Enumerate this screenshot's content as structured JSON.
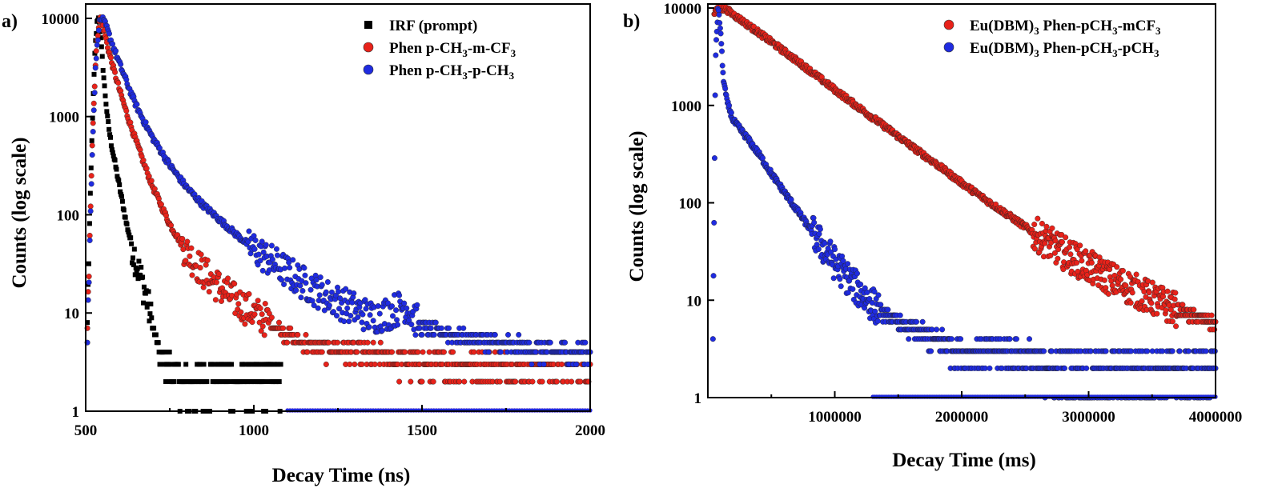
{
  "figure": {
    "background": "#ffffff"
  },
  "chart_data": [
    {
      "type": "scatter",
      "panel_label": "a)",
      "title": "",
      "xlabel": "Decay Time (ns)",
      "ylabel": "Counts (log scale)",
      "xlim": [
        500,
        2000
      ],
      "ylim": [
        1,
        14000
      ],
      "y_scale": "log",
      "x_ticks": [
        500,
        1000,
        1500,
        2000
      ],
      "x_tick_labels": [
        "500",
        "1000",
        "1500",
        "2000"
      ],
      "y_ticks": [
        1,
        10,
        100,
        1000,
        10000
      ],
      "y_tick_labels": [
        "1",
        "10",
        "100",
        "1000",
        "10000"
      ],
      "grid": false,
      "legend_position": "top-right",
      "series": [
        {
          "name": "IRF (prompt)",
          "legend_parts": [
            [
              "IRF (prompt)",
              ""
            ]
          ],
          "marker": "square",
          "color": "#000000",
          "peak_x": 540,
          "x": [
            505,
            512,
            520,
            528,
            535,
            540,
            548,
            556,
            565,
            575,
            590,
            605,
            620,
            640,
            660,
            680,
            700,
            720,
            760,
            800,
            850,
            900,
            950,
            1000,
            1050,
            1080
          ],
          "y": [
            8,
            90,
            900,
            5000,
            10000,
            10000,
            4500,
            2000,
            950,
            550,
            300,
            160,
            85,
            45,
            25,
            15,
            7,
            4,
            2.5,
            2,
            2,
            2.5,
            2,
            2,
            2.5,
            2
          ]
        },
        {
          "name": "Phen p-CH3-m-CF3",
          "legend_parts": [
            [
              "Phen p-CH",
              ""
            ],
            [
              "3",
              "sub"
            ],
            [
              "-m-CF",
              ""
            ],
            [
              "3",
              "sub"
            ]
          ],
          "marker": "circle",
          "color": "#e8221a",
          "peak_x": 545,
          "x": [
            505,
            512,
            520,
            530,
            540,
            545,
            555,
            565,
            580,
            600,
            625,
            650,
            675,
            700,
            750,
            800,
            850,
            900,
            950,
            1000,
            1050,
            1100,
            1150,
            1200,
            1300,
            1400,
            1500,
            1600,
            1700,
            1800,
            1900,
            2000
          ],
          "y": [
            6,
            60,
            600,
            4000,
            9500,
            10000,
            7500,
            5200,
            3300,
            1900,
            1000,
            560,
            320,
            190,
            80,
            42,
            26,
            18,
            13,
            10,
            8,
            6,
            5,
            4.5,
            4,
            3.5,
            3,
            3,
            3,
            3,
            3,
            3
          ]
        },
        {
          "name": "Phen p-CH3-p-CH3",
          "legend_parts": [
            [
              "Phen p-CH",
              ""
            ],
            [
              "3",
              "sub"
            ],
            [
              "-p-CH",
              ""
            ],
            [
              "3",
              "sub"
            ]
          ],
          "marker": "circle",
          "color": "#1f2be0",
          "peak_x": 548,
          "x": [
            505,
            512,
            520,
            530,
            540,
            548,
            560,
            575,
            600,
            625,
            650,
            675,
            700,
            750,
            800,
            850,
            900,
            950,
            1000,
            1050,
            1100,
            1150,
            1200,
            1250,
            1300,
            1350,
            1400,
            1450,
            1500,
            1600,
            1700,
            1800,
            1900,
            2000
          ],
          "y": [
            5,
            50,
            500,
            3500,
            9000,
            10000,
            8500,
            6000,
            3500,
            2100,
            1300,
            870,
            600,
            320,
            190,
            125,
            88,
            62,
            45,
            34,
            26,
            20,
            16,
            13,
            11,
            9,
            10,
            12,
            7,
            6,
            5,
            4.5,
            4,
            4
          ]
        }
      ]
    },
    {
      "type": "scatter",
      "panel_label": "b)",
      "title": "",
      "xlabel": "Decay Time (ms)",
      "ylabel": "Counts (log scale)",
      "xlim": [
        0,
        4000000
      ],
      "ylim": [
        1,
        11000
      ],
      "y_scale": "log",
      "x_ticks": [
        1000000,
        2000000,
        3000000,
        4000000
      ],
      "x_tick_labels": [
        "1000000",
        "2000000",
        "3000000",
        "4000000"
      ],
      "y_ticks": [
        1,
        10,
        100,
        1000,
        10000
      ],
      "y_tick_labels": [
        "1",
        "10",
        "100",
        "1000",
        "10000"
      ],
      "grid": false,
      "legend_position": "top-right",
      "series": [
        {
          "name": "Eu(DBM)3 Phen-pCH3-mCF3",
          "legend_parts": [
            [
              "Eu(DBM)",
              ""
            ],
            [
              "3",
              "sub"
            ],
            [
              " Phen-pCH",
              ""
            ],
            [
              "3",
              "sub"
            ],
            [
              "-mCF",
              ""
            ],
            [
              "3",
              "sub"
            ]
          ],
          "marker": "circle",
          "color": "#e8221a",
          "x": [
            50000,
            100000,
            150000,
            200000,
            400000,
            600000,
            800000,
            1000000,
            1200000,
            1400000,
            1600000,
            1800000,
            2000000,
            2200000,
            2400000,
            2600000,
            2800000,
            3000000,
            3200000,
            3400000,
            3600000,
            3800000,
            4000000
          ],
          "y": [
            9000,
            10000,
            9600,
            8600,
            5600,
            3600,
            2300,
            1450,
            930,
            600,
            385,
            250,
            160,
            105,
            70,
            46,
            31,
            22,
            16,
            12,
            9,
            7,
            6
          ]
        },
        {
          "name": "Eu(DBM)3 Phen-pCH3-pCH3",
          "legend_parts": [
            [
              "Eu(DBM)",
              ""
            ],
            [
              "3",
              "sub"
            ],
            [
              " Phen-pCH",
              ""
            ],
            [
              "3",
              "sub"
            ],
            [
              "-pCH",
              ""
            ],
            [
              "3",
              "sub"
            ]
          ],
          "marker": "circle",
          "color": "#1f2be0",
          "x": [
            40000,
            60000,
            80000,
            100000,
            120000,
            150000,
            200000,
            300000,
            400000,
            500000,
            600000,
            700000,
            800000,
            900000,
            1000000,
            1100000,
            1200000,
            1300000,
            1400000,
            1600000,
            1800000,
            2000000,
            2400000,
            2800000,
            3200000,
            3600000,
            4000000
          ],
          "y": [
            3,
            3000,
            10000,
            6000,
            2000,
            1100,
            700,
            480,
            320,
            200,
            130,
            85,
            55,
            36,
            24,
            17,
            12,
            9,
            7,
            5,
            4,
            3,
            3,
            2,
            2,
            2,
            2
          ]
        }
      ]
    }
  ]
}
